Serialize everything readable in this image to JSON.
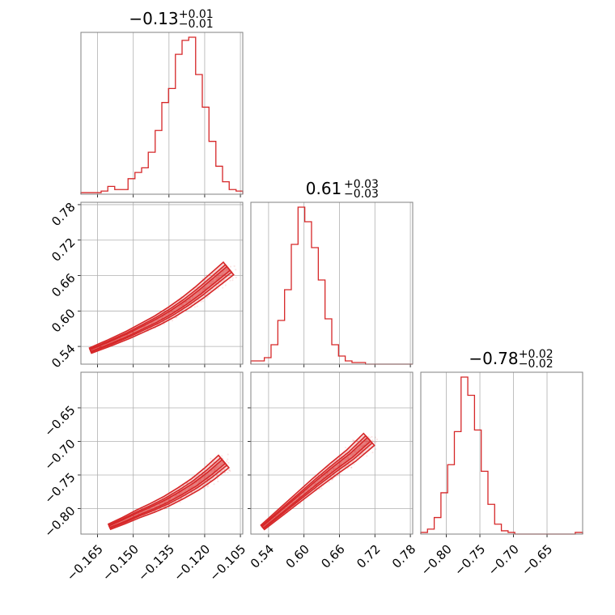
{
  "chart_data": {
    "type": "corner",
    "color": "#d62728",
    "grid": true,
    "params": [
      {
        "median": "−0.13",
        "plus": "+0.01",
        "minus": "−0.01",
        "range": [
          -0.172,
          -0.104
        ],
        "ticks": [
          -0.165,
          -0.15,
          -0.135,
          -0.12,
          -0.105
        ],
        "tick_labels": [
          "−0.165",
          "−0.150",
          "−0.135",
          "−0.120",
          "−0.105"
        ]
      },
      {
        "median": "0.61",
        "plus": "+0.03",
        "minus": "−0.03",
        "range": [
          0.51,
          0.784
        ],
        "ticks": [
          0.54,
          0.6,
          0.66,
          0.72,
          0.78
        ],
        "tick_labels": [
          "0.54",
          "0.60",
          "0.66",
          "0.72",
          "0.78"
        ]
      },
      {
        "median": "−0.78",
        "plus": "+0.02",
        "minus": "−0.02",
        "range": [
          -0.838,
          -0.597
        ],
        "ticks": [
          -0.8,
          -0.75,
          -0.7,
          -0.65
        ],
        "tick_labels": [
          "−0.80",
          "−0.75",
          "−0.70",
          "−0.65"
        ]
      }
    ],
    "histograms": [
      {
        "param": 0,
        "bins_x": [
          -0.172,
          -0.1692,
          -0.1663,
          -0.1635,
          -0.1607,
          -0.1578,
          -0.155,
          -0.1522,
          -0.1493,
          -0.1465,
          -0.1437,
          -0.1408,
          -0.138,
          -0.1352,
          -0.1323,
          -0.1295,
          -0.1267,
          -0.1238,
          -0.121,
          -0.1182,
          -0.1153,
          -0.1125,
          -0.1097,
          -0.1068,
          -0.104
        ],
        "counts": [
          1,
          1,
          1,
          2,
          5,
          3,
          3,
          10,
          14,
          17,
          27,
          41,
          59,
          68,
          90,
          99,
          101,
          77,
          56,
          34,
          18,
          8,
          3,
          2
        ]
      },
      {
        "param": 1,
        "bins_x": [
          0.51,
          0.5214,
          0.5328,
          0.5442,
          0.5557,
          0.5671,
          0.5785,
          0.5899,
          0.6013,
          0.6127,
          0.6242,
          0.6356,
          0.647,
          0.6584,
          0.6698,
          0.6812,
          0.6927,
          0.7041,
          0.7155,
          0.7269,
          0.7383,
          0.7497,
          0.7612,
          0.7726,
          0.784
        ],
        "counts": [
          2,
          2,
          4,
          12,
          27,
          46,
          74,
          97,
          88,
          72,
          52,
          28,
          12,
          5,
          2,
          1,
          1,
          0,
          0,
          0,
          0,
          0,
          0,
          0
        ]
      },
      {
        "param": 2,
        "bins_x": [
          -0.838,
          -0.828,
          -0.818,
          -0.808,
          -0.798,
          -0.788,
          -0.778,
          -0.768,
          -0.758,
          -0.748,
          -0.738,
          -0.728,
          -0.718,
          -0.708,
          -0.698,
          -0.688,
          -0.678,
          -0.668,
          -0.658,
          -0.648,
          -0.638,
          -0.628,
          -0.618,
          -0.608,
          -0.597
        ],
        "counts": [
          1,
          3,
          10,
          25,
          42,
          62,
          95,
          84,
          63,
          38,
          18,
          6,
          2,
          1,
          0,
          0,
          0,
          0,
          0,
          0,
          0,
          0,
          0,
          1
        ]
      }
    ],
    "scatter_panels": [
      {
        "x_param": 0,
        "y_param": 1,
        "ridge_x": [
          -0.168,
          -0.16,
          -0.152,
          -0.146,
          -0.14,
          -0.134,
          -0.128,
          -0.122,
          -0.116,
          -0.11
        ],
        "ridge_y": [
          0.533,
          0.546,
          0.56,
          0.572,
          0.584,
          0.598,
          0.614,
          0.632,
          0.652,
          0.672
        ]
      },
      {
        "x_param": 0,
        "y_param": 2,
        "ridge_x": [
          -0.16,
          -0.154,
          -0.148,
          -0.142,
          -0.136,
          -0.13,
          -0.124,
          -0.118,
          -0.112
        ],
        "ridge_y": [
          -0.827,
          -0.818,
          -0.808,
          -0.799,
          -0.789,
          -0.777,
          -0.764,
          -0.748,
          -0.73
        ]
      },
      {
        "x_param": 1,
        "y_param": 2,
        "ridge_x": [
          0.53,
          0.56,
          0.59,
          0.62,
          0.65,
          0.68,
          0.71
        ],
        "ridge_y": [
          -0.828,
          -0.806,
          -0.784,
          -0.762,
          -0.741,
          -0.721,
          -0.697
        ]
      }
    ]
  }
}
